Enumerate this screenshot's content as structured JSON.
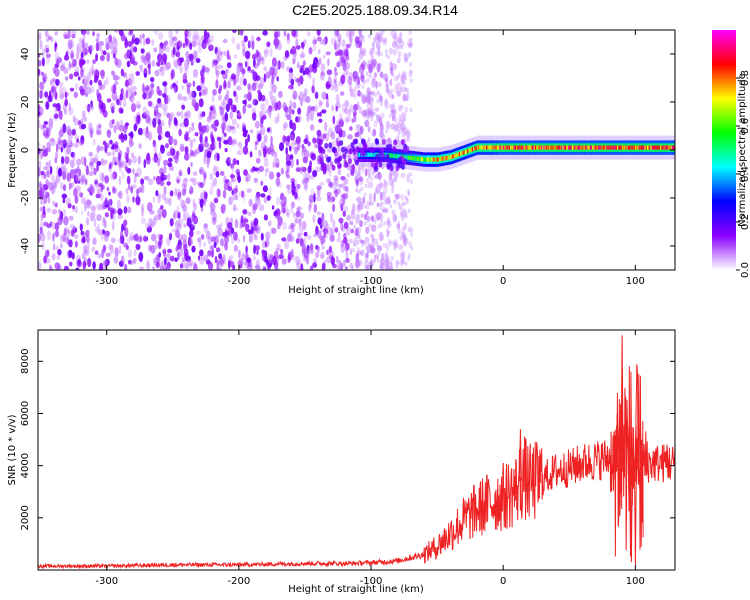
{
  "title": "C2E5.2025.188.09.34.R14",
  "chart_data": [
    {
      "type": "heatmap",
      "xlabel": "Height of straight line (km)",
      "ylabel": "Frequency (Hz)",
      "xlim": [
        -352,
        130
      ],
      "ylim": [
        -50,
        50
      ],
      "x_ticks": [
        -300,
        -200,
        -100,
        0,
        100
      ],
      "y_ticks": [
        -40,
        -20,
        0,
        20,
        40
      ],
      "colorbar": {
        "label": "Normalized spectral amplitude",
        "range": [
          0,
          1
        ],
        "ticks": [
          0.0,
          0.2,
          0.4,
          0.6,
          0.8
        ],
        "colormap": [
          "#ffffff",
          "#8a00ff",
          "#0000ff",
          "#00ffff",
          "#00ff00",
          "#ffff00",
          "#ff0000",
          "#ff00ff"
        ]
      },
      "ridge": {
        "description_free": true,
        "x": [
          -110,
          -90,
          -75,
          -60,
          -50,
          -40,
          -30,
          -20,
          -10,
          0,
          20,
          40,
          60,
          80,
          100,
          120,
          130
        ],
        "freq": [
          -2,
          -2,
          -3,
          -4,
          -4,
          -3,
          -1,
          1,
          1,
          1,
          1,
          1,
          1,
          1,
          1,
          1,
          1
        ],
        "amplitude": [
          0.45,
          0.55,
          0.6,
          0.75,
          0.85,
          0.85,
          0.85,
          0.9,
          0.9,
          0.95,
          0.95,
          0.95,
          0.95,
          0.95,
          0.95,
          0.95,
          0.95
        ]
      },
      "noise_region_x": [
        -352,
        -70
      ],
      "grid": false
    },
    {
      "type": "line",
      "xlabel": "Height of straight line (km)",
      "ylabel": "SNR (10 * v/v)",
      "xlim": [
        -352,
        130
      ],
      "ylim": [
        0,
        9200
      ],
      "x_ticks": [
        -300,
        -200,
        -100,
        0,
        100
      ],
      "y_ticks": [
        2000,
        4000,
        6000,
        8000
      ],
      "series": [
        {
          "color": "#ee2222",
          "x": [
            -352,
            -300,
            -250,
            -200,
            -150,
            -120,
            -100,
            -80,
            -60,
            -50,
            -40,
            -30,
            -20,
            -10,
            0,
            10,
            15,
            20,
            30,
            40,
            50,
            60,
            70,
            80,
            85,
            90,
            95,
            100,
            105,
            110,
            120,
            130
          ],
          "y": [
            150,
            150,
            200,
            200,
            250,
            250,
            280,
            350,
            600,
            900,
            1400,
            1900,
            2300,
            2600,
            2800,
            3100,
            3600,
            3300,
            3500,
            3800,
            3900,
            4100,
            4200,
            4300,
            4400,
            4500,
            4300,
            4200,
            4000,
            4100,
            4100,
            4100
          ]
        }
      ],
      "spikes": [
        {
          "x": 13,
          "y": 5400
        },
        {
          "x": 90,
          "y": 9000
        },
        {
          "x": 100,
          "y": 200
        },
        {
          "x": 97,
          "y": 300
        },
        {
          "x": 124,
          "y": 4800
        }
      ],
      "grid": false
    }
  ]
}
